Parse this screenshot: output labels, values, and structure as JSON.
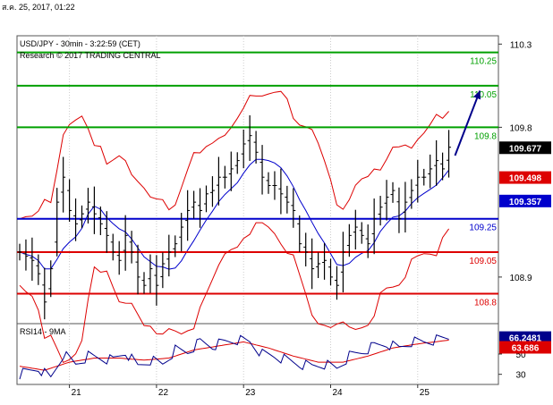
{
  "timestamp": "ส.ค. 25, 2017, 01:22",
  "chart_data": {
    "type": "ohlc",
    "instrument_title": "USD/JPY - 30min - 3:22:59 (CET)",
    "copyright": "Research © 2017 TRADING CENTRAL",
    "price_axis_ticks": [
      110.3,
      109.8,
      108.9
    ],
    "ylim": [
      108.62,
      110.35
    ],
    "x_tick_labels": [
      "21",
      "22",
      "23",
      "24",
      "25"
    ],
    "levels": [
      {
        "value": 110.25,
        "label": "110.25",
        "color": "#00a000"
      },
      {
        "value": 110.05,
        "label": "110.05",
        "color": "#00a000"
      },
      {
        "value": 109.8,
        "label": "109.8",
        "color": "#00a000"
      },
      {
        "value": 109.25,
        "label": "109.25",
        "color": "#0000cc"
      },
      {
        "value": 109.05,
        "label": "109.05",
        "color": "#dd0000"
      },
      {
        "value": 108.8,
        "label": "108.8",
        "color": "#dd0000"
      }
    ],
    "last_price": {
      "value": 109.677,
      "label": "109.677",
      "color": "#000000"
    },
    "upper_band_value": {
      "value": 109.498,
      "label": "109.498",
      "color": "#dd0000"
    },
    "moving_average_value": {
      "value": 109.357,
      "label": "109.357",
      "color": "#0000cc"
    },
    "price_path": [
      [
        0,
        109.05
      ],
      [
        2,
        109.0
      ],
      [
        3,
        108.92
      ],
      [
        4,
        108.75
      ],
      [
        5,
        108.95
      ],
      [
        6,
        109.35
      ],
      [
        7,
        109.5
      ],
      [
        8,
        109.3
      ],
      [
        9,
        109.22
      ],
      [
        10,
        109.28
      ],
      [
        11,
        109.35
      ],
      [
        12,
        109.28
      ],
      [
        13,
        109.22
      ],
      [
        14,
        109.15
      ],
      [
        15,
        109.05
      ],
      [
        16,
        109.0
      ],
      [
        17,
        109.15
      ],
      [
        18,
        109.05
      ],
      [
        19,
        108.9
      ],
      [
        20,
        108.85
      ],
      [
        21,
        108.95
      ],
      [
        22,
        108.85
      ],
      [
        23,
        108.98
      ],
      [
        24,
        109.05
      ],
      [
        25,
        109.1
      ],
      [
        26,
        109.2
      ],
      [
        27,
        109.3
      ],
      [
        28,
        109.35
      ],
      [
        29,
        109.3
      ],
      [
        30,
        109.4
      ],
      [
        31,
        109.42
      ],
      [
        32,
        109.5
      ],
      [
        33,
        109.5
      ],
      [
        34,
        109.55
      ],
      [
        35,
        109.6
      ],
      [
        36,
        109.7
      ],
      [
        37,
        109.75
      ],
      [
        38,
        109.65
      ],
      [
        39,
        109.5
      ],
      [
        40,
        109.45
      ],
      [
        41,
        109.45
      ],
      [
        42,
        109.4
      ],
      [
        43,
        109.35
      ],
      [
        44,
        109.3
      ],
      [
        45,
        109.1
      ],
      [
        46,
        109.05
      ],
      [
        47,
        108.95
      ],
      [
        48,
        108.98
      ],
      [
        49,
        109.0
      ],
      [
        50,
        108.9
      ],
      [
        51,
        108.85
      ],
      [
        52,
        109.05
      ],
      [
        53,
        109.15
      ],
      [
        54,
        109.2
      ],
      [
        55,
        109.15
      ],
      [
        56,
        109.1
      ],
      [
        57,
        109.25
      ],
      [
        58,
        109.32
      ],
      [
        59,
        109.38
      ],
      [
        60,
        109.42
      ],
      [
        61,
        109.25
      ],
      [
        62,
        109.35
      ],
      [
        63,
        109.42
      ],
      [
        64,
        109.5
      ],
      [
        65,
        109.5
      ],
      [
        66,
        109.55
      ],
      [
        67,
        109.6
      ],
      [
        68,
        109.55
      ],
      [
        69,
        109.68
      ]
    ],
    "forecast_arrow": {
      "from": [
        70,
        109.63
      ],
      "to": [
        74,
        110.02
      ],
      "color": "#00008b"
    },
    "rsi": {
      "title": "RSI14 - 9MA",
      "ticks": [
        50,
        30
      ],
      "ylim": [
        20,
        80
      ],
      "rsi_value": {
        "value": 66.2481,
        "label": "66.2481",
        "color": "#00008b"
      },
      "ma_value": {
        "value": 63.686,
        "label": "63.686",
        "color": "#dd0000"
      },
      "rsi_path": [
        [
          0,
          30
        ],
        [
          3,
          36
        ],
        [
          5,
          26
        ],
        [
          7,
          50
        ],
        [
          9,
          40
        ],
        [
          11,
          48
        ],
        [
          13,
          46
        ],
        [
          15,
          44
        ],
        [
          17,
          52
        ],
        [
          19,
          38
        ],
        [
          21,
          44
        ],
        [
          23,
          40
        ],
        [
          25,
          54
        ],
        [
          27,
          52
        ],
        [
          29,
          62
        ],
        [
          31,
          58
        ],
        [
          33,
          62
        ],
        [
          35,
          64
        ],
        [
          37,
          62
        ],
        [
          39,
          50
        ],
        [
          41,
          48
        ],
        [
          43,
          44
        ],
        [
          45,
          40
        ],
        [
          47,
          38
        ],
        [
          49,
          40
        ],
        [
          51,
          36
        ],
        [
          53,
          48
        ],
        [
          55,
          52
        ],
        [
          57,
          58
        ],
        [
          59,
          60
        ],
        [
          61,
          56
        ],
        [
          63,
          62
        ],
        [
          65,
          62
        ],
        [
          67,
          64
        ],
        [
          69,
          66.2
        ]
      ],
      "ma_path": [
        [
          0,
          38
        ],
        [
          4,
          34
        ],
        [
          8,
          42
        ],
        [
          12,
          46
        ],
        [
          16,
          46
        ],
        [
          20,
          44
        ],
        [
          24,
          46
        ],
        [
          28,
          54
        ],
        [
          32,
          58
        ],
        [
          36,
          62
        ],
        [
          40,
          56
        ],
        [
          44,
          48
        ],
        [
          48,
          42
        ],
        [
          52,
          42
        ],
        [
          56,
          48
        ],
        [
          60,
          56
        ],
        [
          64,
          60
        ],
        [
          69,
          63.7
        ]
      ]
    }
  }
}
